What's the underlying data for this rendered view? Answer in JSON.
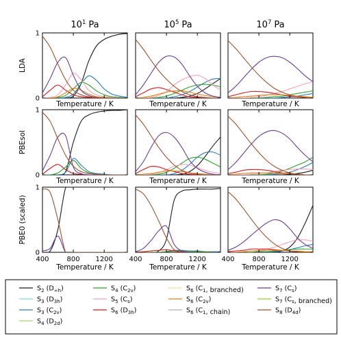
{
  "chart_data": {
    "type": "line",
    "layout": "3x3 small multiples, shared y range per row, shared x range per column",
    "columns": [
      {
        "title_base": "10",
        "title_exp": "1",
        "title_unit": "Pa"
      },
      {
        "title_base": "10",
        "title_exp": "5",
        "title_unit": "Pa"
      },
      {
        "title_base": "10",
        "title_exp": "7",
        "title_unit": "Pa"
      }
    ],
    "rows": [
      {
        "label": "LDA"
      },
      {
        "label": "PBEsol"
      },
      {
        "label": "PBE0 (scaled)"
      }
    ],
    "xlabel": "Temperature / K",
    "xlim": [
      400,
      1500
    ],
    "ylim": [
      0,
      1
    ],
    "x_ticks": [
      400,
      800,
      1200
    ],
    "x_tick_labels": [
      "400",
      "800",
      "1200"
    ],
    "y_ticks": [
      0,
      1
    ],
    "y_tick_labels": [
      "0",
      "1"
    ],
    "grid": false,
    "legend_placement": "bottom",
    "series_styles": [
      {
        "key": "S2_Dinfh",
        "base": "S",
        "sub": "2",
        "sym": "D",
        "symsub": "∞h",
        "color": "#1a1a1a"
      },
      {
        "key": "S3_D3h",
        "base": "S",
        "sub": "3",
        "sym": "D",
        "symsub": "3h",
        "color": "#8fd3e0"
      },
      {
        "key": "S3_C2v",
        "base": "S",
        "sub": "3",
        "sym": "C",
        "symsub": "2v",
        "color": "#2b7bba"
      },
      {
        "key": "S4_D2d",
        "base": "S",
        "sub": "4",
        "sym": "D",
        "symsub": "2d",
        "color": "#a6d96a"
      },
      {
        "key": "S4_C2v",
        "base": "S",
        "sub": "4",
        "sym": "C",
        "symsub": "2v",
        "color": "#2ca02c"
      },
      {
        "key": "S5_Cs",
        "base": "S",
        "sub": "5",
        "sym": "C",
        "symsub": "s",
        "color": "#f4a3b4"
      },
      {
        "key": "S6_D3h",
        "base": "S",
        "sub": "6",
        "sym": "D",
        "symsub": "3h",
        "color": "#d7191c"
      },
      {
        "key": "S6_C1_branched",
        "base": "S",
        "sub": "6",
        "sym": "C",
        "symsub": "1",
        "suffix": ", branched",
        "color": "#fdd9a0"
      },
      {
        "key": "S6_C2v",
        "base": "S",
        "sub": "6",
        "sym": "C",
        "symsub": "2v",
        "color": "#e08214"
      },
      {
        "key": "S6_C1_chain",
        "base": "S",
        "sub": "6",
        "sym": "C",
        "symsub": "1",
        "suffix": ", chain",
        "color": "#b0b0b0"
      },
      {
        "key": "S7_Cs",
        "base": "S",
        "sub": "7",
        "sym": "C",
        "symsub": "s",
        "color": "#6a3d9a"
      },
      {
        "key": "S7_Cs_branched",
        "base": "S",
        "sub": "7",
        "sym": "C",
        "symsub": "s",
        "suffix": ", branched",
        "color": "#9acd32"
      },
      {
        "key": "S8_D4d",
        "base": "S",
        "sub": "8",
        "sym": "D",
        "symsub": "4d",
        "color": "#a0522d"
      }
    ],
    "x": [
      400,
      500,
      600,
      700,
      800,
      900,
      1000,
      1100,
      1200,
      1300,
      1400,
      1500
    ],
    "panels": [
      {
        "row": 0,
        "col": 0,
        "series": {
          "S8_D4d": [
            0.95,
            0.78,
            0.52,
            0.28,
            0.12,
            0.05,
            0.02,
            0.01,
            0,
            0,
            0,
            0
          ],
          "S7_Cs": [
            0.08,
            0.3,
            0.55,
            0.62,
            0.35,
            0.12,
            0.04,
            0.01,
            0,
            0,
            0,
            0
          ],
          "S6_D3h": [
            0.02,
            0.12,
            0.2,
            0.12,
            0.05,
            0.02,
            0.01,
            0,
            0,
            0,
            0,
            0
          ],
          "S5_Cs": [
            0,
            0.01,
            0.05,
            0.2,
            0.38,
            0.28,
            0.12,
            0.05,
            0.02,
            0.01,
            0,
            0
          ],
          "S6_C2v": [
            0,
            0,
            0.02,
            0.08,
            0.15,
            0.12,
            0.06,
            0.02,
            0.01,
            0,
            0,
            0
          ],
          "S4_C2v": [
            0,
            0,
            0.01,
            0.04,
            0.14,
            0.24,
            0.2,
            0.11,
            0.05,
            0.02,
            0.01,
            0
          ],
          "S3_C2v": [
            0,
            0,
            0,
            0.01,
            0.06,
            0.22,
            0.34,
            0.27,
            0.14,
            0.06,
            0.03,
            0.01
          ],
          "S2_Dinfh": [
            0,
            0,
            0,
            0,
            0.03,
            0.22,
            0.57,
            0.8,
            0.9,
            0.95,
            0.98,
            0.99
          ]
        }
      },
      {
        "row": 0,
        "col": 1,
        "series": {
          "S8_D4d": [
            0.9,
            0.75,
            0.58,
            0.42,
            0.29,
            0.18,
            0.1,
            0.05,
            0.02,
            0.01,
            0,
            0
          ],
          "S7_Cs": [
            0.05,
            0.2,
            0.38,
            0.55,
            0.64,
            0.63,
            0.52,
            0.34,
            0.18,
            0.08,
            0.03,
            0.01
          ],
          "S6_D3h": [
            0.02,
            0.08,
            0.14,
            0.16,
            0.13,
            0.09,
            0.05,
            0.02,
            0.01,
            0,
            0,
            0
          ],
          "S5_Cs": [
            0,
            0,
            0.01,
            0.04,
            0.1,
            0.2,
            0.28,
            0.33,
            0.35,
            0.3,
            0.2,
            0.12
          ],
          "S6_C2v": [
            0,
            0.01,
            0.03,
            0.06,
            0.09,
            0.11,
            0.11,
            0.09,
            0.06,
            0.04,
            0.02,
            0.01
          ],
          "S4_C2v": [
            0,
            0,
            0,
            0.01,
            0.03,
            0.07,
            0.12,
            0.17,
            0.2,
            0.21,
            0.2,
            0.17
          ],
          "S3_C2v": [
            0,
            0,
            0,
            0,
            0,
            0.02,
            0.05,
            0.1,
            0.17,
            0.24,
            0.29,
            0.3
          ],
          "S2_Dinfh": [
            0,
            0,
            0,
            0,
            0,
            0,
            0.01,
            0.03,
            0.07,
            0.14,
            0.22,
            0.3
          ]
        }
      },
      {
        "row": 0,
        "col": 2,
        "series": {
          "S8_D4d": [
            0.88,
            0.76,
            0.62,
            0.48,
            0.35,
            0.24,
            0.15,
            0.09,
            0.05,
            0.02,
            0.01,
            0
          ],
          "S7_Cs": [
            0.08,
            0.18,
            0.31,
            0.44,
            0.55,
            0.62,
            0.64,
            0.62,
            0.55,
            0.45,
            0.34,
            0.25
          ],
          "S6_D3h": [
            0.02,
            0.05,
            0.08,
            0.1,
            0.1,
            0.09,
            0.07,
            0.05,
            0.03,
            0.02,
            0.01,
            0
          ],
          "S5_Cs": [
            0,
            0,
            0,
            0.01,
            0.02,
            0.04,
            0.07,
            0.1,
            0.14,
            0.18,
            0.22,
            0.25
          ],
          "S6_C2v": [
            0,
            0.01,
            0.02,
            0.03,
            0.04,
            0.05,
            0.05,
            0.05,
            0.04,
            0.03,
            0.02,
            0.01
          ],
          "S4_C2v": [
            0,
            0,
            0,
            0,
            0,
            0.01,
            0.02,
            0.03,
            0.05,
            0.07,
            0.09,
            0.11
          ],
          "S3_C2v": [
            0,
            0,
            0,
            0,
            0,
            0,
            0,
            0.01,
            0.02,
            0.03,
            0.05,
            0.07
          ]
        }
      },
      {
        "row": 1,
        "col": 0,
        "series": {
          "S8_D4d": [
            0.96,
            0.82,
            0.55,
            0.3,
            0.13,
            0.05,
            0.02,
            0.01,
            0,
            0,
            0,
            0
          ],
          "S7_Cs": [
            0.06,
            0.3,
            0.58,
            0.6,
            0.12,
            0.02,
            0,
            0,
            0,
            0,
            0,
            0
          ],
          "S6_D3h": [
            0.01,
            0.1,
            0.16,
            0.08,
            0.02,
            0.01,
            0,
            0,
            0,
            0,
            0,
            0
          ],
          "S4_C2v": [
            0,
            0,
            0.03,
            0.12,
            0.22,
            0.1,
            0.03,
            0.01,
            0,
            0,
            0,
            0
          ],
          "S3_C2v": [
            0,
            0,
            0,
            0.04,
            0.25,
            0.15,
            0.05,
            0.02,
            0.01,
            0,
            0,
            0
          ],
          "S2_Dinfh": [
            0,
            0,
            0,
            0.05,
            0.5,
            0.82,
            0.92,
            0.96,
            0.98,
            0.99,
            0.99,
            1
          ]
        }
      },
      {
        "row": 1,
        "col": 1,
        "series": {
          "S8_D4d": [
            0.92,
            0.78,
            0.6,
            0.42,
            0.27,
            0.15,
            0.07,
            0.03,
            0.01,
            0,
            0,
            0
          ],
          "S7_Cs": [
            0.05,
            0.2,
            0.42,
            0.6,
            0.65,
            0.58,
            0.42,
            0.22,
            0.1,
            0.04,
            0.01,
            0
          ],
          "S6_D3h": [
            0.02,
            0.08,
            0.13,
            0.12,
            0.08,
            0.05,
            0.02,
            0.01,
            0,
            0,
            0,
            0
          ],
          "S5_Cs": [
            0,
            0,
            0.01,
            0.03,
            0.08,
            0.13,
            0.16,
            0.15,
            0.11,
            0.07,
            0.04,
            0.02
          ],
          "S6_C2v": [
            0,
            0.01,
            0.02,
            0.04,
            0.06,
            0.06,
            0.05,
            0.03,
            0.02,
            0.01,
            0,
            0
          ],
          "S4_C2v": [
            0,
            0,
            0,
            0.01,
            0.04,
            0.1,
            0.18,
            0.25,
            0.27,
            0.24,
            0.18,
            0.12
          ],
          "S3_C2v": [
            0,
            0,
            0,
            0,
            0,
            0.02,
            0.07,
            0.16,
            0.27,
            0.34,
            0.35,
            0.3
          ],
          "S2_Dinfh": [
            0,
            0,
            0,
            0,
            0,
            0,
            0.01,
            0.05,
            0.14,
            0.28,
            0.44,
            0.58
          ]
        }
      },
      {
        "row": 1,
        "col": 2,
        "series": {
          "S8_D4d": [
            0.9,
            0.78,
            0.63,
            0.48,
            0.34,
            0.22,
            0.13,
            0.07,
            0.03,
            0.01,
            0,
            0
          ],
          "S7_Cs": [
            0.08,
            0.19,
            0.33,
            0.47,
            0.59,
            0.66,
            0.68,
            0.64,
            0.55,
            0.42,
            0.3,
            0.2
          ],
          "S6_D3h": [
            0.02,
            0.04,
            0.07,
            0.08,
            0.08,
            0.07,
            0.05,
            0.03,
            0.02,
            0.01,
            0,
            0
          ],
          "S5_Cs": [
            0,
            0,
            0,
            0.01,
            0.02,
            0.03,
            0.05,
            0.07,
            0.08,
            0.09,
            0.09,
            0.08
          ],
          "S6_C2v": [
            0,
            0.01,
            0.02,
            0.03,
            0.03,
            0.03,
            0.03,
            0.02,
            0.02,
            0.01,
            0,
            0
          ],
          "S4_C2v": [
            0,
            0,
            0,
            0,
            0,
            0.01,
            0.03,
            0.06,
            0.1,
            0.15,
            0.2,
            0.27
          ],
          "S3_C2v": [
            0,
            0,
            0,
            0,
            0,
            0,
            0.01,
            0.02,
            0.04,
            0.08,
            0.13,
            0.19
          ],
          "S2_Dinfh": [
            0,
            0,
            0,
            0,
            0,
            0,
            0,
            0,
            0.01,
            0.02,
            0.04,
            0.07
          ]
        }
      },
      {
        "row": 2,
        "col": 0,
        "series": {
          "S8_D4d": [
            0.97,
            0.92,
            0.5,
            0,
            0,
            0,
            0,
            0,
            0,
            0,
            0,
            0
          ],
          "S7_Cs": [
            0.02,
            0.06,
            0.25,
            0,
            0,
            0,
            0,
            0,
            0,
            0,
            0,
            0
          ],
          "S2_Dinfh": [
            0,
            0.02,
            0.35,
            0.99,
            1,
            1,
            1,
            1,
            1,
            1,
            1,
            1
          ]
        }
      },
      {
        "row": 2,
        "col": 1,
        "series": {
          "S8_D4d": [
            0.97,
            0.9,
            0.72,
            0.48,
            0.22,
            0.04,
            0,
            0,
            0,
            0,
            0,
            0
          ],
          "S7_Cs": [
            0.01,
            0.06,
            0.18,
            0.33,
            0.4,
            0.12,
            0.02,
            0,
            0,
            0,
            0,
            0
          ],
          "S6_D3h": [
            0,
            0.01,
            0.02,
            0.03,
            0.04,
            0.02,
            0.01,
            0,
            0,
            0,
            0,
            0
          ],
          "S3_C2v": [
            0,
            0,
            0,
            0,
            0.01,
            0.03,
            0.03,
            0.02,
            0.02,
            0.01,
            0.01,
            0.01
          ],
          "S4_C2v": [
            0,
            0,
            0,
            0,
            0.01,
            0.02,
            0.02,
            0.01,
            0.01,
            0.01,
            0,
            0
          ],
          "S2_Dinfh": [
            0,
            0,
            0,
            0.02,
            0.2,
            0.8,
            0.94,
            0.96,
            0.97,
            0.97,
            0.97,
            0.98
          ]
        }
      },
      {
        "row": 2,
        "col": 2,
        "series": {
          "S8_D4d": [
            0.93,
            0.82,
            0.67,
            0.51,
            0.36,
            0.23,
            0.13,
            0.06,
            0.02,
            0.01,
            0,
            0
          ],
          "S7_Cs": [
            0.03,
            0.08,
            0.16,
            0.26,
            0.36,
            0.45,
            0.5,
            0.47,
            0.36,
            0.22,
            0.12,
            0.06
          ],
          "S6_D3h": [
            0.01,
            0.02,
            0.03,
            0.05,
            0.05,
            0.05,
            0.04,
            0.03,
            0.02,
            0.01,
            0,
            0
          ],
          "S5_Cs": [
            0,
            0,
            0.01,
            0.02,
            0.03,
            0.05,
            0.08,
            0.12,
            0.16,
            0.19,
            0.19,
            0.17
          ],
          "S6_C2v": [
            0,
            0,
            0.01,
            0.02,
            0.02,
            0.03,
            0.03,
            0.03,
            0.02,
            0.02,
            0.01,
            0.01
          ],
          "S4_C2v": [
            0,
            0,
            0,
            0,
            0.01,
            0.01,
            0.02,
            0.03,
            0.04,
            0.05,
            0.05,
            0.05
          ],
          "S3_C2v": [
            0,
            0,
            0,
            0,
            0,
            0,
            0.01,
            0.02,
            0.04,
            0.07,
            0.1,
            0.12
          ],
          "S2_Dinfh": [
            0,
            0,
            0,
            0,
            0,
            0,
            0,
            0.02,
            0.08,
            0.22,
            0.45,
            0.72
          ]
        }
      }
    ]
  }
}
